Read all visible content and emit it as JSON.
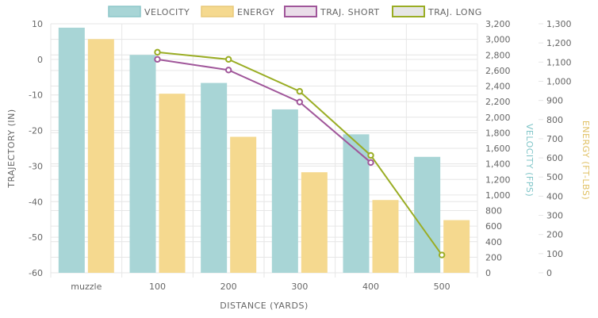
{
  "chart_data": {
    "type": "bar",
    "categories": [
      "muzzle",
      "100",
      "200",
      "300",
      "400",
      "500"
    ],
    "series": [
      {
        "name": "VELOCITY",
        "kind": "bar",
        "axis": "velocity",
        "color": "#a8d5d6",
        "values": [
          3150,
          2800,
          2440,
          2100,
          1780,
          1490
        ]
      },
      {
        "name": "ENERGY",
        "kind": "bar",
        "axis": "energy",
        "color": "#f5d98f",
        "values": [
          1220,
          935,
          710,
          525,
          380,
          275
        ]
      },
      {
        "name": "TRAJ. SHORT",
        "kind": "line",
        "axis": "trajectory",
        "color": "#a0569a",
        "values": [
          null,
          0,
          -3,
          -12,
          -29,
          null
        ]
      },
      {
        "name": "TRAJ. LONG",
        "kind": "line",
        "axis": "trajectory",
        "color": "#9aad24",
        "values": [
          null,
          2,
          0,
          -9,
          -27,
          -55
        ]
      }
    ],
    "xlabel": "DISTANCE (YARDS)",
    "axes": {
      "trajectory": {
        "label": "TRAJECTORY (IN)",
        "range": [
          -60,
          10
        ],
        "step": 10,
        "color": "#666666"
      },
      "velocity": {
        "label": "VELOCITY (FPS)",
        "range": [
          0,
          3200
        ],
        "step": 200,
        "color": "#7fc5c8"
      },
      "energy": {
        "label": "ENERGY (FT-LBS)",
        "range": [
          0,
          1300
        ],
        "step": 100,
        "color": "#e0c062"
      }
    }
  }
}
